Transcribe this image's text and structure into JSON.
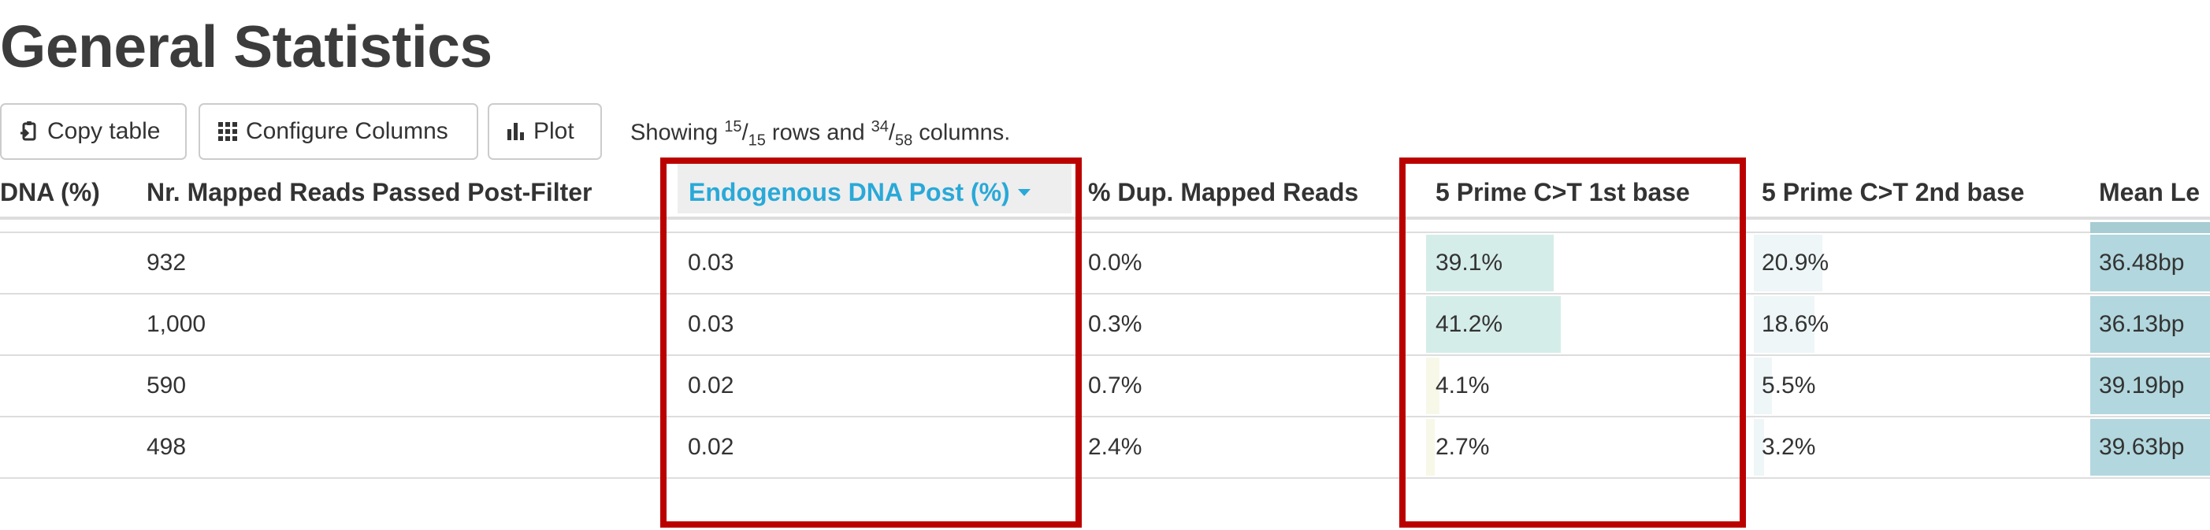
{
  "page": {
    "title": "General Statistics"
  },
  "toolbar": {
    "copy_label": "Copy table",
    "configure_label": "Configure Columns",
    "plot_label": "Plot"
  },
  "showing": {
    "prefix": "Showing ",
    "rows_shown": "15",
    "rows_total": "15",
    "rows_word": " rows and ",
    "cols_shown": "34",
    "cols_total": "58",
    "cols_word": " columns."
  },
  "table": {
    "columns": [
      "DNA (%)",
      "Nr. Mapped Reads Passed Post-Filter",
      "Endogenous DNA Post (%)",
      "% Dup. Mapped Reads",
      "5 Prime C>T 1st base",
      "5 Prime C>T 2nd base",
      "Mean Le"
    ],
    "rows": [
      [
        "",
        "932",
        "0.03",
        "0.0%",
        "39.1%",
        "20.9%",
        "36.48bp"
      ],
      [
        "",
        "1,000",
        "0.03",
        "0.3%",
        "41.2%",
        "18.6%",
        "36.13bp"
      ],
      [
        "",
        "590",
        "0.02",
        "0.7%",
        "4.1%",
        "5.5%",
        "39.19bp"
      ],
      [
        "",
        "498",
        "0.02",
        "2.4%",
        "2.7%",
        "3.2%",
        "39.63bp"
      ]
    ],
    "bar_fractions": {
      "prime1": [
        0.39,
        0.412,
        0.041,
        0.027
      ],
      "prime2": [
        0.209,
        0.186,
        0.055,
        0.032
      ]
    },
    "sorted_column": "Endogenous DNA Post (%)",
    "sort_direction": "descending"
  },
  "colors": {
    "highlight_box": "#bb0000",
    "sorted_header_text": "#29a9d8",
    "prime1_bar": "#d5ede9",
    "prime2_bar": "#eef6f7",
    "mean_length_bar": "#b2d7de"
  },
  "icons": {
    "copy": "clipboard-icon",
    "configure": "grid-icon",
    "plot": "bar-chart-icon",
    "sort": "caret-down-icon"
  }
}
